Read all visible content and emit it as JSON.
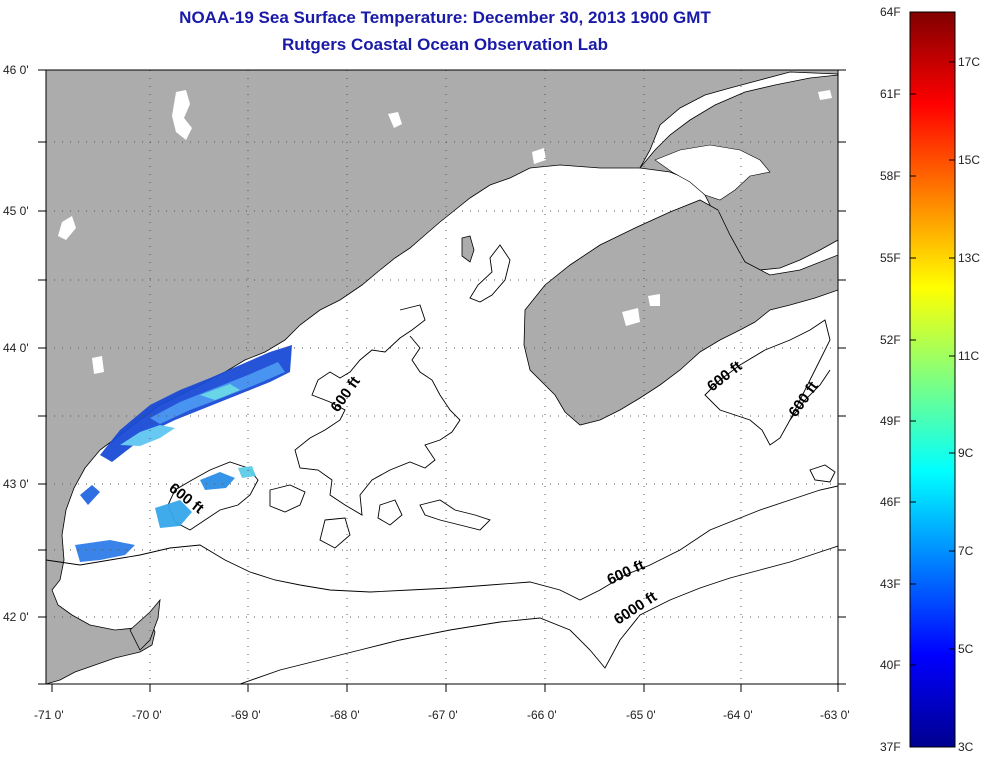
{
  "title": "NOAA-19 Sea Surface Temperature:  December 30, 2013 1900 GMT",
  "subtitle": "Rutgers Coastal Ocean Observation Lab",
  "lat_labels": [
    "46 0'",
    "45 0'",
    "44 0'",
    "43 0'",
    "42 0'"
  ],
  "lon_labels": [
    "-71 0'",
    "-70 0'",
    "-69 0'",
    "-68 0'",
    "-67 0'",
    "-66 0'",
    "-65 0'",
    "-64 0'",
    "-63 0'"
  ],
  "contour_labels": [
    "600 ft",
    "600 ft",
    "600 ft",
    "600 ft",
    "600 ft",
    "6000 ft"
  ],
  "colorbar": {
    "fahrenheit": [
      "64F",
      "61F",
      "58F",
      "55F",
      "52F",
      "49F",
      "46F",
      "43F",
      "40F",
      "37F"
    ],
    "celsius": [
      "17C",
      "15C",
      "13C",
      "11C",
      "9C",
      "7C",
      "5C",
      "3C"
    ]
  },
  "colors": {
    "land": "#acacac",
    "ocean": "#ffffff",
    "title": "#1a1aa8",
    "contour": "#000000"
  }
}
